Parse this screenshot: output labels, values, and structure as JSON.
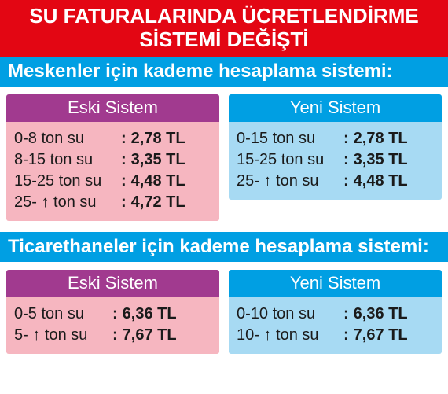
{
  "colors": {
    "banner_bg": "#e30613",
    "section_bg": "#009fe3",
    "old_header_bg": "#a13a8f",
    "old_body_bg": "#f6b6c0",
    "new_header_bg": "#009fe3",
    "new_body_bg": "#a7daf3",
    "white": "#ffffff",
    "text": "#1a1a1a"
  },
  "typography": {
    "banner_fontsize": 26,
    "section_fontsize": 24,
    "panel_header_fontsize": 22,
    "row_fontsize": 20
  },
  "banner": {
    "line1": "SU FATURALARINDA ÜCRETLENDİRME",
    "line2": "SİSTEMİ DEĞİŞTİ"
  },
  "sections": [
    {
      "title": "Meskenler için kademe hesaplama sistemi:",
      "old": {
        "header": "Eski Sistem",
        "rows": [
          {
            "range": "0-8 ton su",
            "price": "2,78 TL"
          },
          {
            "range": "8-15 ton su",
            "price": "3,35 TL"
          },
          {
            "range": "15-25 ton su",
            "price": "4,48 TL"
          },
          {
            "range": "25- ↑ ton su",
            "price": "4,72 TL"
          }
        ]
      },
      "new": {
        "header": "Yeni Sistem",
        "rows": [
          {
            "range": "0-15 ton su",
            "price": "2,78 TL"
          },
          {
            "range": "15-25 ton su",
            "price": "3,35 TL"
          },
          {
            "range": "25- ↑ ton su",
            "price": "4,48 TL"
          }
        ]
      }
    },
    {
      "title": "Ticarethaneler  için kademe hesaplama sistemi:",
      "old": {
        "header": "Eski Sistem",
        "rows": [
          {
            "range": "0-5 ton su",
            "price": "6,36 TL"
          },
          {
            "range": "5- ↑ ton su",
            "price": "7,67 TL"
          }
        ]
      },
      "new": {
        "header": "Yeni Sistem",
        "rows": [
          {
            "range": "0-10 ton su",
            "price": "6,36 TL"
          },
          {
            "range": "10- ↑ ton su",
            "price": "7,67 TL"
          }
        ]
      }
    }
  ]
}
